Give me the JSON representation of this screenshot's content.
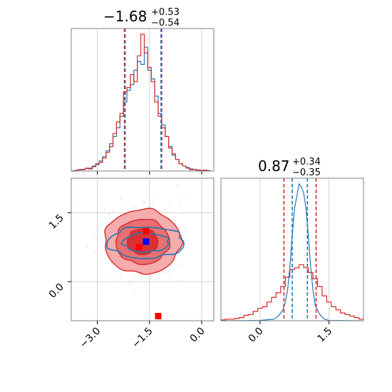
{
  "colors": {
    "red": "#d62728",
    "red_fill_light": "#f4a3a4",
    "red_fill_mid": "#e8686a",
    "red_fill_dark": "#d62728",
    "blue": "#1f77b4",
    "marker_red": "#ff0000",
    "marker_blue": "#0000ff",
    "grid": "#c8c8c8",
    "axes": "#808080"
  },
  "chart_data": {
    "type": "corner",
    "parameters": [
      "p0",
      "p1"
    ],
    "titles": {
      "p0": {
        "median": "−1.68",
        "plus": "+0.53",
        "minus": "−0.54"
      },
      "p1": {
        "median": "0.87",
        "plus": "+0.34",
        "minus": "−0.35"
      }
    },
    "ranges": {
      "p0": [
        -3.75,
        0.35
      ],
      "p1": [
        -0.85,
        2.25
      ]
    },
    "ticks": {
      "p0": {
        "values": [
          -3.0,
          -1.5,
          0.0
        ],
        "labels": [
          "−3.0",
          "−1.5",
          "0.0"
        ]
      },
      "p1": {
        "values": [
          0.0,
          1.5
        ],
        "labels": [
          "0.0",
          "1.5"
        ]
      }
    },
    "p0_hist": {
      "quantiles_red": [
        -2.22,
        -1.15
      ],
      "quantiles_blue": [
        -2.2,
        -1.17
      ],
      "red": [
        [
          -3.7,
          0
        ],
        [
          -3.6,
          0.005
        ],
        [
          -3.5,
          0.01
        ],
        [
          -3.4,
          0.01
        ],
        [
          -3.3,
          0.02
        ],
        [
          -3.2,
          0.015
        ],
        [
          -3.1,
          0.03
        ],
        [
          -3.0,
          0.05
        ],
        [
          -2.9,
          0.06
        ],
        [
          -2.8,
          0.09
        ],
        [
          -2.7,
          0.13
        ],
        [
          -2.6,
          0.17
        ],
        [
          -2.5,
          0.26
        ],
        [
          -2.4,
          0.34
        ],
        [
          -2.3,
          0.4
        ],
        [
          -2.2,
          0.55
        ],
        [
          -2.1,
          0.58
        ],
        [
          -2.0,
          0.67
        ],
        [
          -1.9,
          0.62
        ],
        [
          -1.8,
          0.8
        ],
        [
          -1.7,
          0.95
        ],
        [
          -1.6,
          0.82
        ],
        [
          -1.5,
          0.72
        ],
        [
          -1.4,
          0.62
        ],
        [
          -1.3,
          0.48
        ],
        [
          -1.2,
          0.38
        ],
        [
          -1.1,
          0.3
        ],
        [
          -1.0,
          0.24
        ],
        [
          -0.9,
          0.16
        ],
        [
          -0.8,
          0.12
        ],
        [
          -0.7,
          0.08
        ],
        [
          -0.6,
          0.05
        ],
        [
          -0.5,
          0.035
        ],
        [
          -0.4,
          0.02
        ],
        [
          -0.3,
          0.01
        ],
        [
          -0.2,
          0.012
        ],
        [
          -0.1,
          0.006
        ],
        [
          0.0,
          0.004
        ],
        [
          0.1,
          0.006
        ],
        [
          0.2,
          0.003
        ]
      ],
      "blue": [
        [
          -3.7,
          0
        ],
        [
          -3.6,
          0.004
        ],
        [
          -3.5,
          0.008
        ],
        [
          -3.4,
          0.012
        ],
        [
          -3.3,
          0.018
        ],
        [
          -3.2,
          0.02
        ],
        [
          -3.1,
          0.035
        ],
        [
          -3.0,
          0.045
        ],
        [
          -2.9,
          0.07
        ],
        [
          -2.8,
          0.1
        ],
        [
          -2.7,
          0.14
        ],
        [
          -2.6,
          0.19
        ],
        [
          -2.5,
          0.24
        ],
        [
          -2.4,
          0.3
        ],
        [
          -2.3,
          0.38
        ],
        [
          -2.2,
          0.48
        ],
        [
          -2.1,
          0.56
        ],
        [
          -2.0,
          0.6
        ],
        [
          -1.9,
          0.7
        ],
        [
          -1.8,
          0.76
        ],
        [
          -1.7,
          0.74
        ],
        [
          -1.6,
          0.86
        ],
        [
          -1.5,
          0.7
        ],
        [
          -1.4,
          0.64
        ],
        [
          -1.3,
          0.52
        ],
        [
          -1.2,
          0.4
        ],
        [
          -1.1,
          0.32
        ],
        [
          -1.0,
          0.24
        ],
        [
          -0.9,
          0.17
        ],
        [
          -0.8,
          0.11
        ],
        [
          -0.7,
          0.08
        ],
        [
          -0.6,
          0.05
        ],
        [
          -0.5,
          0.035
        ],
        [
          -0.4,
          0.025
        ],
        [
          -0.3,
          0.015
        ],
        [
          -0.2,
          0.01
        ],
        [
          -0.1,
          0.008
        ],
        [
          0.0,
          0.005
        ],
        [
          0.1,
          0.006
        ],
        [
          0.2,
          0.004
        ]
      ]
    },
    "p1_hist": {
      "quantiles_red": [
        0.52,
        1.22
      ],
      "quantiles_blue": [
        0.7,
        1.03
      ],
      "red": [
        [
          -0.8,
          0.005
        ],
        [
          -0.7,
          0.01
        ],
        [
          -0.6,
          0.01
        ],
        [
          -0.5,
          0.015
        ],
        [
          -0.4,
          0.02
        ],
        [
          -0.3,
          0.035
        ],
        [
          -0.2,
          0.04
        ],
        [
          -0.1,
          0.06
        ],
        [
          0.0,
          0.08
        ],
        [
          0.1,
          0.09
        ],
        [
          0.2,
          0.12
        ],
        [
          0.3,
          0.15
        ],
        [
          0.4,
          0.18
        ],
        [
          0.5,
          0.22
        ],
        [
          0.6,
          0.28
        ],
        [
          0.7,
          0.33
        ],
        [
          0.8,
          0.34
        ],
        [
          0.9,
          0.36
        ],
        [
          1.0,
          0.34
        ],
        [
          1.1,
          0.31
        ],
        [
          1.2,
          0.27
        ],
        [
          1.3,
          0.22
        ],
        [
          1.4,
          0.16
        ],
        [
          1.5,
          0.12
        ],
        [
          1.6,
          0.09
        ],
        [
          1.7,
          0.07
        ],
        [
          1.8,
          0.05
        ],
        [
          1.9,
          0.04
        ],
        [
          2.0,
          0.03
        ],
        [
          2.1,
          0.02
        ],
        [
          2.2,
          0.01
        ]
      ],
      "blue": [
        [
          -0.8,
          0
        ],
        [
          0.0,
          0.002
        ],
        [
          0.3,
          0.01
        ],
        [
          0.4,
          0.03
        ],
        [
          0.5,
          0.07
        ],
        [
          0.55,
          0.12
        ],
        [
          0.6,
          0.2
        ],
        [
          0.65,
          0.35
        ],
        [
          0.7,
          0.55
        ],
        [
          0.75,
          0.72
        ],
        [
          0.8,
          0.8
        ],
        [
          0.85,
          0.88
        ],
        [
          0.9,
          0.86
        ],
        [
          0.95,
          0.82
        ],
        [
          1.0,
          0.72
        ],
        [
          1.05,
          0.55
        ],
        [
          1.1,
          0.35
        ],
        [
          1.15,
          0.2
        ],
        [
          1.2,
          0.1
        ],
        [
          1.3,
          0.04
        ],
        [
          1.4,
          0.01
        ],
        [
          1.5,
          0.002
        ],
        [
          2.2,
          0
        ]
      ]
    },
    "joint": {
      "red_center": [
        -1.7,
        0.87
      ],
      "red_contour_sigma": [
        0.55,
        0.35
      ],
      "blue_center": [
        -1.6,
        0.85
      ],
      "blue_contour_sigma": [
        0.55,
        0.17
      ],
      "markers": [
        {
          "x": -1.6,
          "y": 1.1,
          "color": "red"
        },
        {
          "x": -1.8,
          "y": 0.75,
          "color": "red"
        },
        {
          "x": -1.6,
          "y": 0.87,
          "color": "blue"
        },
        {
          "x": -1.25,
          "y": -0.75,
          "color": "red"
        }
      ]
    }
  }
}
